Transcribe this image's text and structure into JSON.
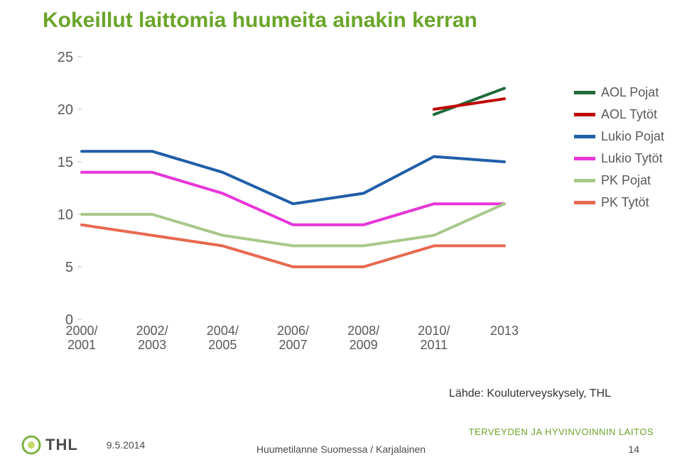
{
  "title": "Kokeillut laittomia huumeita ainakin kerran",
  "chart": {
    "type": "line",
    "categories": [
      "2000/\n2001",
      "2002/\n2003",
      "2004/\n2005",
      "2006/\n2007",
      "2008/\n2009",
      "2010/\n2011",
      "2013"
    ],
    "yticks": [
      0,
      5,
      10,
      15,
      20,
      25
    ],
    "ylim": [
      0,
      25
    ],
    "line_width": 4,
    "background_color": "#ffffff",
    "tick_fontsize": 20,
    "xtick_fontsize": 18,
    "series": [
      {
        "name": "AOL Pojat",
        "color": "#1f6b3a",
        "values": [
          null,
          null,
          null,
          null,
          null,
          19.5,
          22
        ]
      },
      {
        "name": "AOL Tytöt",
        "color": "#c00000",
        "values": [
          null,
          null,
          null,
          null,
          null,
          20,
          21
        ]
      },
      {
        "name": "Lukio Pojat",
        "color": "#1f5ea8",
        "values": [
          16,
          16,
          14,
          11,
          12,
          15.5,
          15
        ]
      },
      {
        "name": "Lukio Tytöt",
        "color": "#e835d8",
        "values": [
          14,
          14,
          12,
          9,
          9,
          11,
          11
        ]
      },
      {
        "name": "PK Pojat",
        "color": "#a8c88a",
        "values": [
          10,
          10,
          8,
          7,
          7,
          8,
          11
        ]
      },
      {
        "name": "PK Tytöt",
        "color": "#e86850",
        "values": [
          9,
          8,
          7,
          5,
          5,
          7,
          7
        ]
      }
    ],
    "legend_position": "right"
  },
  "source": "Lähde: Kouluterveyskysely, THL",
  "footer": {
    "logo_text": "THL",
    "date": "9.5.2014",
    "center": "Huumetilanne Suomessa / Karjalainen",
    "page": "14",
    "org": "TERVEYDEN JA HYVINVOINNIN LAITOS"
  },
  "colors": {
    "title": "#6aa52a",
    "org": "#6aa52a",
    "tick": "#595959",
    "footer_text": "#4a4a4a",
    "logo_circle": "#7cb342",
    "logo_center": "#c6d96a"
  }
}
